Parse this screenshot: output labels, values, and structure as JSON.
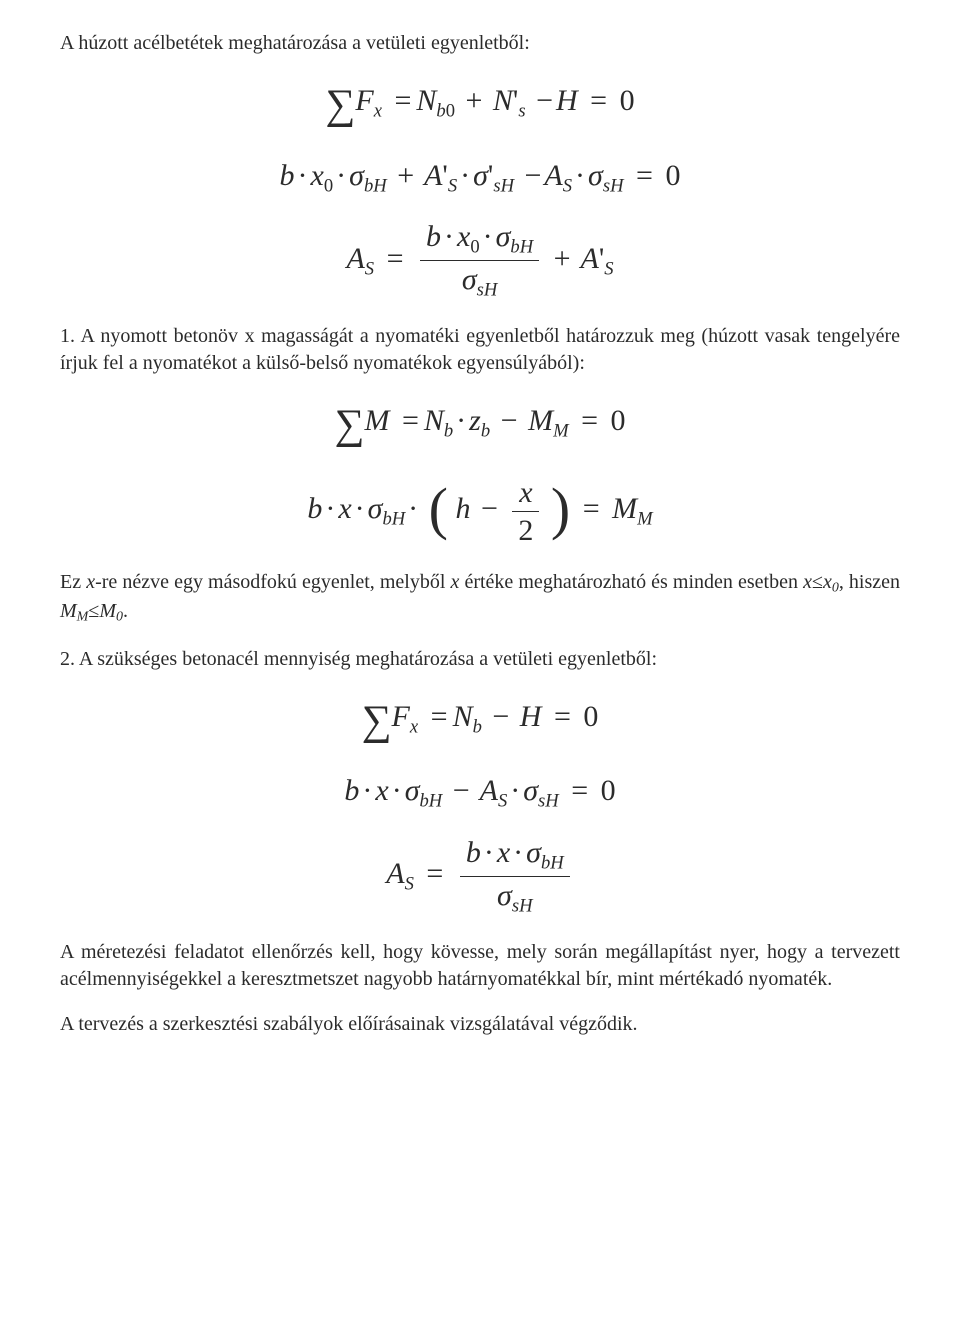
{
  "colors": {
    "text": "#2b2b2b",
    "background": "#ffffff"
  },
  "typography": {
    "body_font": "Times New Roman",
    "body_size_pt": 15,
    "equation_size_pt": 22
  },
  "content": {
    "p1": "A húzott acélbetétek meghatározása a vetületi egyenletből:",
    "eq1": "∑ Fₓ = N_{b0} + N'_s − H = 0",
    "eq2": "b · x₀ · σ_{bH} + A'_S · σ'_{sH} − A_S · σ_{sH} = 0",
    "eq3": "A_S = (b · x₀ · σ_{bH}) / σ_{sH} + A'_S",
    "p2": "1. A nyomott betonöv x magasságát a nyomatéki egyenletből határozzuk meg (húzott vasak tengelyére írjuk fel a nyomatékot a külső-belső nyomatékok egyensúlyából):",
    "eq4": "∑ M = N_b · z_b − M_M = 0",
    "eq5": "b · x · σ_{bH} · ( h − x/2 ) = M_M",
    "p3a": "Ez ",
    "p3b": "-re nézve egy másodfokú egyenlet, melyből ",
    "p3c": " értéke meghatározható és minden esetben ",
    "p3d": ", hiszen ",
    "p3e": ".",
    "p3_x": "x",
    "p3_xlex0": "x≤x₀",
    "p3_mm_m0": "M_M≤M_0",
    "p4": "2. A szükséges betonacél mennyiség meghatározása a vetületi egyenletből:",
    "eq6": "∑ Fₓ = N_b − H = 0",
    "eq7": "b · x · σ_{bH} − A_S · σ_{sH} = 0",
    "eq8": "A_S = (b · x · σ_{bH}) / σ_{sH}",
    "p5": "A méretezési feladatot ellenőrzés kell, hogy kövesse, mely során megállapítást nyer, hogy a tervezett acélmennyiségekkel a keresztmetszet nagyobb határnyomatékkal bír, mint mértékadó nyomaték.",
    "p6": "A tervezés a szerkesztési szabályok előírásainak vizsgálatával végződik."
  }
}
